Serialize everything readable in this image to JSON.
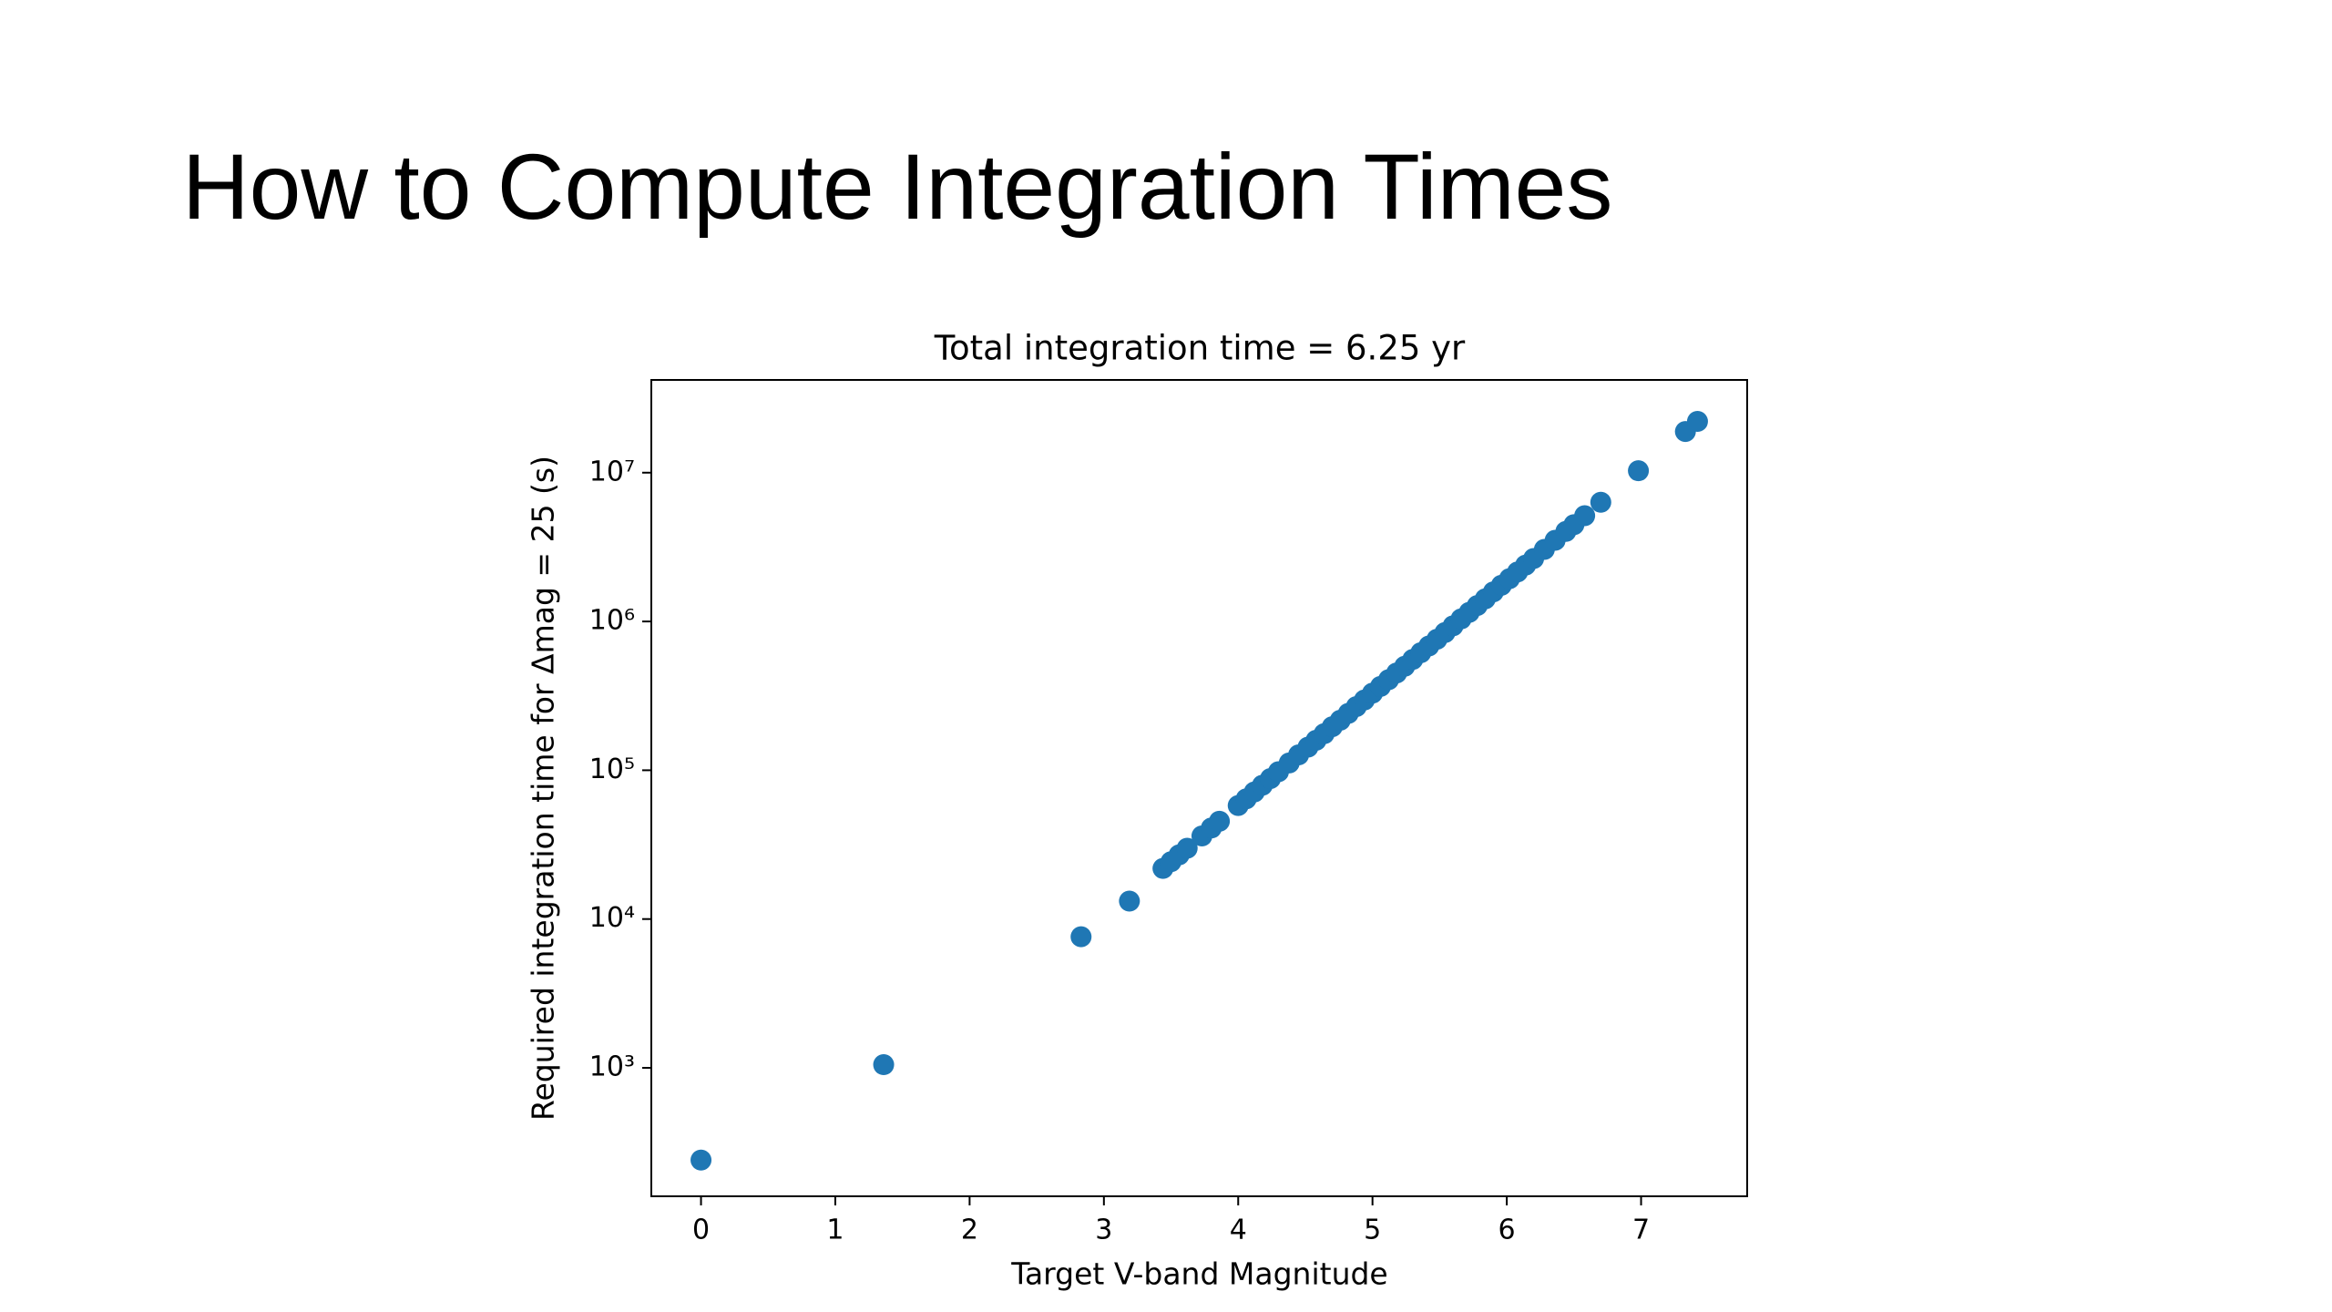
{
  "slide": {
    "title": "How to Compute Integration Times"
  },
  "chart_data": {
    "type": "scatter",
    "title": "Total integration time = 6.25 yr",
    "xlabel": "Target V-band Magnitude",
    "ylabel": "Required integration time for Δmag = 25 (s)",
    "yscale": "log",
    "color": "#1f77b4",
    "xlim": [
      -0.37,
      7.79
    ],
    "ylim": [
      137,
      42000000
    ],
    "xticks": [
      0,
      1,
      2,
      3,
      4,
      5,
      6,
      7
    ],
    "yticks": [
      {
        "value": 1000,
        "label": "10³"
      },
      {
        "value": 10000,
        "label": "10⁴"
      },
      {
        "value": 100000,
        "label": "10⁵"
      },
      {
        "value": 1000000,
        "label": "10⁶"
      },
      {
        "value": 10000000,
        "label": "10⁷"
      }
    ],
    "x": [
      0,
      1.36,
      2.83,
      3.19,
      3.44,
      3.5,
      3.56,
      3.62,
      3.73,
      3.8,
      3.86,
      4.0,
      4.06,
      4.12,
      4.18,
      4.24,
      4.3,
      4.38,
      4.45,
      4.52,
      4.58,
      4.64,
      4.7,
      4.76,
      4.82,
      4.88,
      4.94,
      5.0,
      5.06,
      5.12,
      5.18,
      5.24,
      5.3,
      5.36,
      5.42,
      5.48,
      5.54,
      5.6,
      5.66,
      5.72,
      5.78,
      5.84,
      5.9,
      5.96,
      6.02,
      6.08,
      6.14,
      6.2,
      6.28,
      6.36,
      6.44,
      6.5,
      6.58,
      6.7,
      6.98,
      7.33,
      7.42
    ],
    "values": [
      240,
      1050,
      7600,
      13200,
      21900,
      24300,
      27000,
      29900,
      36200,
      40900,
      45400,
      57900,
      64300,
      71400,
      79300,
      87900,
      97700,
      112000,
      127000,
      143000,
      159000,
      176000,
      196000,
      217000,
      241000,
      268000,
      297000,
      330000,
      366000,
      406000,
      451000,
      500000,
      556000,
      617000,
      684000,
      759000,
      843000,
      935000,
      1040000,
      1150000,
      1280000,
      1420000,
      1580000,
      1750000,
      1940000,
      2150000,
      2390000,
      2650000,
      3050000,
      3510000,
      4030000,
      4470000,
      5140000,
      6330000,
      10300000,
      18900000,
      22100000
    ]
  }
}
